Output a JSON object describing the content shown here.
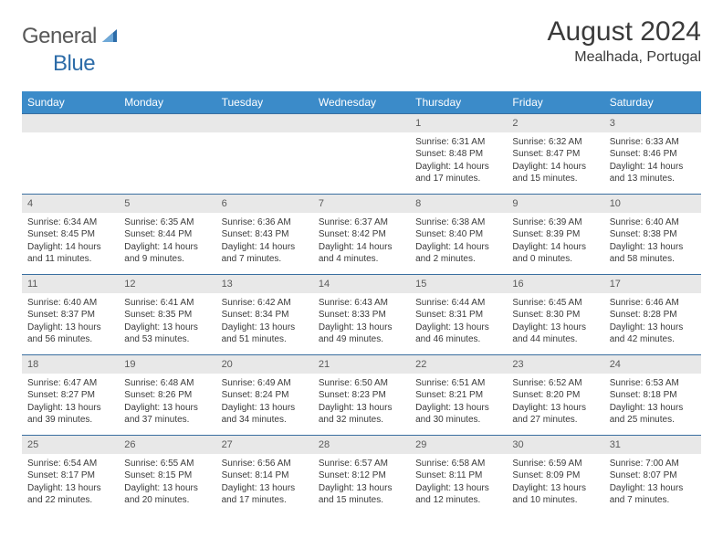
{
  "logo": {
    "word1": "General",
    "word2": "Blue"
  },
  "title": "August 2024",
  "location": "Mealhada, Portugal",
  "colors": {
    "header_bg": "#3b8bc9",
    "header_text": "#ffffff",
    "daynum_bg": "#e8e8e8",
    "border": "#3a6fa0",
    "body_text": "#3a3a3a",
    "logo_gray": "#585858",
    "logo_blue": "#2d6ca8"
  },
  "layout": {
    "cols": 7,
    "weeks": 5,
    "cell_fontsize": 10,
    "head_fontsize": 12
  },
  "day_names": [
    "Sunday",
    "Monday",
    "Tuesday",
    "Wednesday",
    "Thursday",
    "Friday",
    "Saturday"
  ],
  "weeks": [
    [
      null,
      null,
      null,
      null,
      {
        "n": "1",
        "sr": "Sunrise: 6:31 AM",
        "ss": "Sunset: 8:48 PM",
        "d1": "Daylight: 14 hours",
        "d2": "and 17 minutes."
      },
      {
        "n": "2",
        "sr": "Sunrise: 6:32 AM",
        "ss": "Sunset: 8:47 PM",
        "d1": "Daylight: 14 hours",
        "d2": "and 15 minutes."
      },
      {
        "n": "3",
        "sr": "Sunrise: 6:33 AM",
        "ss": "Sunset: 8:46 PM",
        "d1": "Daylight: 14 hours",
        "d2": "and 13 minutes."
      }
    ],
    [
      {
        "n": "4",
        "sr": "Sunrise: 6:34 AM",
        "ss": "Sunset: 8:45 PM",
        "d1": "Daylight: 14 hours",
        "d2": "and 11 minutes."
      },
      {
        "n": "5",
        "sr": "Sunrise: 6:35 AM",
        "ss": "Sunset: 8:44 PM",
        "d1": "Daylight: 14 hours",
        "d2": "and 9 minutes."
      },
      {
        "n": "6",
        "sr": "Sunrise: 6:36 AM",
        "ss": "Sunset: 8:43 PM",
        "d1": "Daylight: 14 hours",
        "d2": "and 7 minutes."
      },
      {
        "n": "7",
        "sr": "Sunrise: 6:37 AM",
        "ss": "Sunset: 8:42 PM",
        "d1": "Daylight: 14 hours",
        "d2": "and 4 minutes."
      },
      {
        "n": "8",
        "sr": "Sunrise: 6:38 AM",
        "ss": "Sunset: 8:40 PM",
        "d1": "Daylight: 14 hours",
        "d2": "and 2 minutes."
      },
      {
        "n": "9",
        "sr": "Sunrise: 6:39 AM",
        "ss": "Sunset: 8:39 PM",
        "d1": "Daylight: 14 hours",
        "d2": "and 0 minutes."
      },
      {
        "n": "10",
        "sr": "Sunrise: 6:40 AM",
        "ss": "Sunset: 8:38 PM",
        "d1": "Daylight: 13 hours",
        "d2": "and 58 minutes."
      }
    ],
    [
      {
        "n": "11",
        "sr": "Sunrise: 6:40 AM",
        "ss": "Sunset: 8:37 PM",
        "d1": "Daylight: 13 hours",
        "d2": "and 56 minutes."
      },
      {
        "n": "12",
        "sr": "Sunrise: 6:41 AM",
        "ss": "Sunset: 8:35 PM",
        "d1": "Daylight: 13 hours",
        "d2": "and 53 minutes."
      },
      {
        "n": "13",
        "sr": "Sunrise: 6:42 AM",
        "ss": "Sunset: 8:34 PM",
        "d1": "Daylight: 13 hours",
        "d2": "and 51 minutes."
      },
      {
        "n": "14",
        "sr": "Sunrise: 6:43 AM",
        "ss": "Sunset: 8:33 PM",
        "d1": "Daylight: 13 hours",
        "d2": "and 49 minutes."
      },
      {
        "n": "15",
        "sr": "Sunrise: 6:44 AM",
        "ss": "Sunset: 8:31 PM",
        "d1": "Daylight: 13 hours",
        "d2": "and 46 minutes."
      },
      {
        "n": "16",
        "sr": "Sunrise: 6:45 AM",
        "ss": "Sunset: 8:30 PM",
        "d1": "Daylight: 13 hours",
        "d2": "and 44 minutes."
      },
      {
        "n": "17",
        "sr": "Sunrise: 6:46 AM",
        "ss": "Sunset: 8:28 PM",
        "d1": "Daylight: 13 hours",
        "d2": "and 42 minutes."
      }
    ],
    [
      {
        "n": "18",
        "sr": "Sunrise: 6:47 AM",
        "ss": "Sunset: 8:27 PM",
        "d1": "Daylight: 13 hours",
        "d2": "and 39 minutes."
      },
      {
        "n": "19",
        "sr": "Sunrise: 6:48 AM",
        "ss": "Sunset: 8:26 PM",
        "d1": "Daylight: 13 hours",
        "d2": "and 37 minutes."
      },
      {
        "n": "20",
        "sr": "Sunrise: 6:49 AM",
        "ss": "Sunset: 8:24 PM",
        "d1": "Daylight: 13 hours",
        "d2": "and 34 minutes."
      },
      {
        "n": "21",
        "sr": "Sunrise: 6:50 AM",
        "ss": "Sunset: 8:23 PM",
        "d1": "Daylight: 13 hours",
        "d2": "and 32 minutes."
      },
      {
        "n": "22",
        "sr": "Sunrise: 6:51 AM",
        "ss": "Sunset: 8:21 PM",
        "d1": "Daylight: 13 hours",
        "d2": "and 30 minutes."
      },
      {
        "n": "23",
        "sr": "Sunrise: 6:52 AM",
        "ss": "Sunset: 8:20 PM",
        "d1": "Daylight: 13 hours",
        "d2": "and 27 minutes."
      },
      {
        "n": "24",
        "sr": "Sunrise: 6:53 AM",
        "ss": "Sunset: 8:18 PM",
        "d1": "Daylight: 13 hours",
        "d2": "and 25 minutes."
      }
    ],
    [
      {
        "n": "25",
        "sr": "Sunrise: 6:54 AM",
        "ss": "Sunset: 8:17 PM",
        "d1": "Daylight: 13 hours",
        "d2": "and 22 minutes."
      },
      {
        "n": "26",
        "sr": "Sunrise: 6:55 AM",
        "ss": "Sunset: 8:15 PM",
        "d1": "Daylight: 13 hours",
        "d2": "and 20 minutes."
      },
      {
        "n": "27",
        "sr": "Sunrise: 6:56 AM",
        "ss": "Sunset: 8:14 PM",
        "d1": "Daylight: 13 hours",
        "d2": "and 17 minutes."
      },
      {
        "n": "28",
        "sr": "Sunrise: 6:57 AM",
        "ss": "Sunset: 8:12 PM",
        "d1": "Daylight: 13 hours",
        "d2": "and 15 minutes."
      },
      {
        "n": "29",
        "sr": "Sunrise: 6:58 AM",
        "ss": "Sunset: 8:11 PM",
        "d1": "Daylight: 13 hours",
        "d2": "and 12 minutes."
      },
      {
        "n": "30",
        "sr": "Sunrise: 6:59 AM",
        "ss": "Sunset: 8:09 PM",
        "d1": "Daylight: 13 hours",
        "d2": "and 10 minutes."
      },
      {
        "n": "31",
        "sr": "Sunrise: 7:00 AM",
        "ss": "Sunset: 8:07 PM",
        "d1": "Daylight: 13 hours",
        "d2": "and 7 minutes."
      }
    ]
  ]
}
